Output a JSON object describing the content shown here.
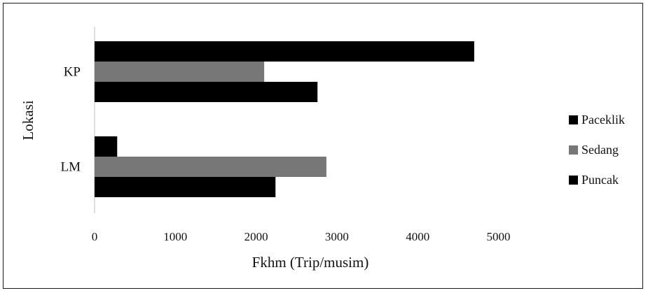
{
  "chart_data": {
    "type": "bar",
    "orientation": "horizontal",
    "categories": [
      "KP",
      "LM"
    ],
    "series": [
      {
        "name": "Paceklik",
        "color": "#000000",
        "values": [
          4700,
          280
        ]
      },
      {
        "name": "Sedang",
        "color": "#777777",
        "values": [
          2100,
          2870
        ]
      },
      {
        "name": "Puncak",
        "color": "#000000",
        "values": [
          2760,
          2240
        ]
      }
    ],
    "xlabel": "Fkhm (Trip/musim)",
    "ylabel": "Lokasi",
    "xlim": [
      0,
      5000
    ],
    "xticks": [
      0,
      1000,
      2000,
      3000,
      4000,
      5000
    ],
    "legend_position": "right",
    "grid": false
  }
}
